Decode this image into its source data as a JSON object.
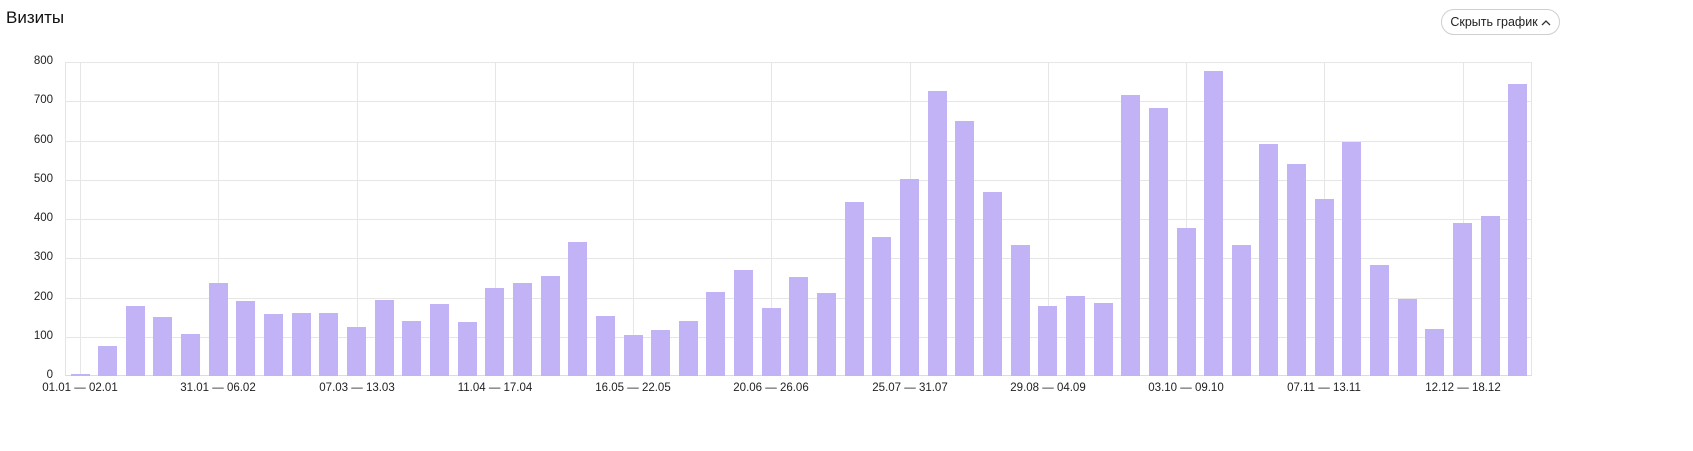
{
  "header": {
    "title": "Визиты",
    "hide_chart_button": "Скрыть график",
    "hide_chart_icon": "chevron-up-icon"
  },
  "colors": {
    "bar": "#c2b3f7",
    "grid": "#e6e6e6",
    "text": "#222222"
  },
  "chart_data": {
    "type": "bar",
    "title": "Визиты",
    "xlabel": "",
    "ylabel": "",
    "ylim": [
      0,
      800
    ],
    "yticks": [
      0,
      100,
      200,
      300,
      400,
      500,
      600,
      700,
      800
    ],
    "grid": true,
    "legend": null,
    "tick_labels": [
      {
        "index": 0,
        "label": "01.01 — 02.01"
      },
      {
        "index": 5,
        "label": "31.01 — 06.02"
      },
      {
        "index": 10,
        "label": "07.03 — 13.03"
      },
      {
        "index": 15,
        "label": "11.04 — 17.04"
      },
      {
        "index": 20,
        "label": "16.05 — 22.05"
      },
      {
        "index": 25,
        "label": "20.06 — 26.06"
      },
      {
        "index": 30,
        "label": "25.07 — 31.07"
      },
      {
        "index": 35,
        "label": "29.08 — 04.09"
      },
      {
        "index": 40,
        "label": "03.10 — 09.10"
      },
      {
        "index": 45,
        "label": "07.11 — 13.11"
      },
      {
        "index": 50,
        "label": "12.12 — 18.12"
      }
    ],
    "series": [
      {
        "name": "Визиты",
        "values": [
          5,
          76,
          178,
          150,
          107,
          237,
          192,
          159,
          161,
          161,
          126,
          194,
          140,
          183,
          138,
          223,
          237,
          256,
          341,
          154,
          105,
          117,
          140,
          213,
          270,
          173,
          251,
          211,
          443,
          353,
          502,
          726,
          650,
          469,
          334,
          178,
          204,
          185,
          717,
          683,
          376,
          778,
          334,
          591,
          539,
          452,
          596,
          282,
          197,
          119,
          391,
          407,
          743
        ]
      }
    ]
  }
}
